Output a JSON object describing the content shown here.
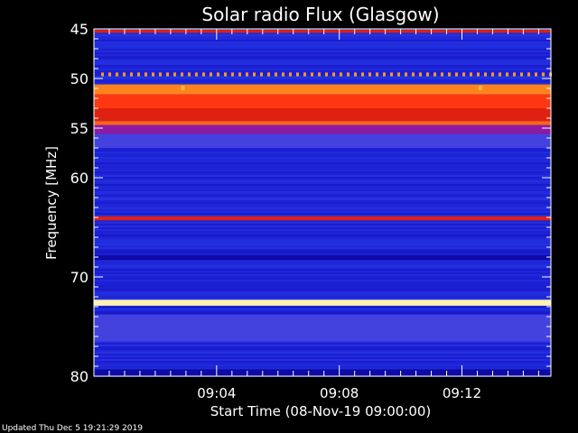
{
  "chart_data": {
    "type": "heatmap",
    "title": "Solar radio Flux (Glasgow)",
    "xlabel": "Start Time (08-Nov-19 09:00:00)",
    "ylabel": "Frequency [MHz]",
    "x_range_minutes": [
      0,
      14.9
    ],
    "x_ticks": [
      {
        "minute": 4,
        "label": "09:04"
      },
      {
        "minute": 8,
        "label": "09:08"
      },
      {
        "minute": 12,
        "label": "09:12"
      }
    ],
    "ylim": [
      45,
      80
    ],
    "y_ticks": [
      45,
      50,
      55,
      60,
      70,
      80
    ],
    "y_tick_labels": [
      "45",
      "50",
      "55",
      "60",
      "70",
      "80"
    ],
    "colormap": [
      "#08008c",
      "#1a1ad0",
      "#2d4ff0",
      "#8a1aa8",
      "#c81010",
      "#ff3a10",
      "#ff9a20",
      "#ffe070",
      "#ffffe0"
    ],
    "background_level": 0.15,
    "bands": [
      {
        "freq_start": 45.1,
        "freq_end": 45.4,
        "intensity": 0.55
      },
      {
        "freq_start": 49.4,
        "freq_end": 49.6,
        "intensity": 0.75,
        "pattern": "dotted"
      },
      {
        "freq_start": 50.6,
        "freq_end": 51.6,
        "intensity": 0.72
      },
      {
        "freq_start": 51.6,
        "freq_end": 53.0,
        "intensity": 0.62
      },
      {
        "freq_start": 53.0,
        "freq_end": 54.3,
        "intensity": 0.55
      },
      {
        "freq_start": 54.3,
        "freq_end": 54.7,
        "intensity": 0.68
      },
      {
        "freq_start": 54.7,
        "freq_end": 55.6,
        "intensity": 0.38
      },
      {
        "freq_start": 55.6,
        "freq_end": 57.0,
        "intensity": 0.28
      },
      {
        "freq_start": 63.9,
        "freq_end": 64.3,
        "intensity": 0.55
      },
      {
        "freq_start": 67.8,
        "freq_end": 68.3,
        "intensity": 0.05
      },
      {
        "freq_start": 72.3,
        "freq_end": 72.9,
        "intensity": 0.95
      },
      {
        "freq_start": 73.8,
        "freq_end": 76.5,
        "intensity": 0.28
      },
      {
        "freq_start": 79.3,
        "freq_end": 80.0,
        "intensity": 0.05
      }
    ],
    "bursts": [
      {
        "minute": 2.9,
        "freq": 51.0,
        "intensity": 0.8
      },
      {
        "minute": 12.6,
        "freq": 51.0,
        "intensity": 0.8
      }
    ]
  },
  "footer": {
    "updated_text": "Updated Thu Dec  5 19:21:29 2019"
  }
}
